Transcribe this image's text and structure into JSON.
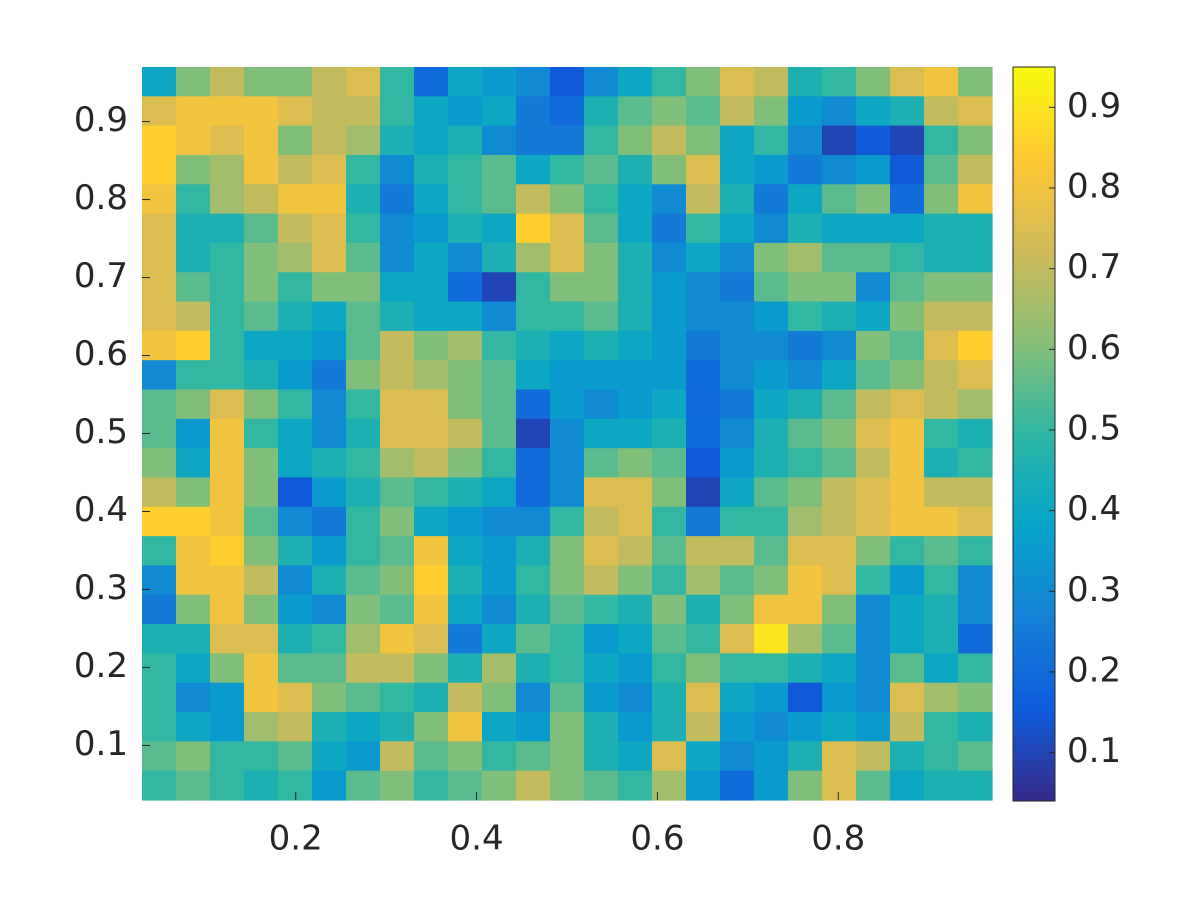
{
  "chart_data": {
    "type": "heatmap",
    "xlim": [
      0.03,
      0.97
    ],
    "ylim": [
      0.03,
      0.97
    ],
    "xticks": [
      0.2,
      0.4,
      0.6,
      0.8
    ],
    "yticks": [
      0.1,
      0.2,
      0.3,
      0.4,
      0.5,
      0.6,
      0.7,
      0.8,
      0.9
    ],
    "clim": [
      0.04,
      0.95
    ],
    "colorbar_ticks": [
      0.1,
      0.2,
      0.3,
      0.4,
      0.5,
      0.6,
      0.7,
      0.8,
      0.9
    ],
    "colormap": [
      "#352a87",
      "#0f5cdd",
      "#1481d6",
      "#06a4ca",
      "#2eb7a4",
      "#87bf77",
      "#d1bb59",
      "#fec832",
      "#f9fb0e"
    ],
    "z": [
      [
        0.4,
        0.6,
        0.7,
        0.6,
        0.6,
        0.7,
        0.75,
        0.5,
        0.2,
        0.4,
        0.35,
        0.3,
        0.15,
        0.3,
        0.4,
        0.5,
        0.6,
        0.75,
        0.7,
        0.45,
        0.5,
        0.6,
        0.75,
        0.8,
        0.6
      ],
      [
        0.75,
        0.8,
        0.8,
        0.8,
        0.75,
        0.7,
        0.7,
        0.5,
        0.4,
        0.35,
        0.4,
        0.25,
        0.2,
        0.45,
        0.55,
        0.6,
        0.55,
        0.7,
        0.6,
        0.35,
        0.3,
        0.4,
        0.45,
        0.7,
        0.75
      ],
      [
        0.85,
        0.8,
        0.75,
        0.8,
        0.6,
        0.7,
        0.65,
        0.45,
        0.4,
        0.45,
        0.3,
        0.25,
        0.25,
        0.5,
        0.6,
        0.7,
        0.6,
        0.4,
        0.5,
        0.3,
        0.1,
        0.15,
        0.1,
        0.5,
        0.6
      ],
      [
        0.85,
        0.6,
        0.65,
        0.8,
        0.7,
        0.75,
        0.5,
        0.3,
        0.45,
        0.5,
        0.55,
        0.4,
        0.5,
        0.55,
        0.45,
        0.6,
        0.75,
        0.4,
        0.35,
        0.25,
        0.3,
        0.35,
        0.15,
        0.55,
        0.7
      ],
      [
        0.8,
        0.5,
        0.65,
        0.7,
        0.8,
        0.8,
        0.45,
        0.25,
        0.4,
        0.5,
        0.55,
        0.7,
        0.6,
        0.5,
        0.4,
        0.3,
        0.7,
        0.45,
        0.25,
        0.4,
        0.55,
        0.6,
        0.2,
        0.6,
        0.8
      ],
      [
        0.75,
        0.45,
        0.45,
        0.55,
        0.7,
        0.75,
        0.5,
        0.3,
        0.35,
        0.45,
        0.4,
        0.85,
        0.75,
        0.55,
        0.4,
        0.25,
        0.5,
        0.4,
        0.3,
        0.45,
        0.4,
        0.4,
        0.4,
        0.45,
        0.45
      ],
      [
        0.75,
        0.45,
        0.5,
        0.6,
        0.65,
        0.75,
        0.55,
        0.3,
        0.4,
        0.3,
        0.45,
        0.65,
        0.75,
        0.6,
        0.45,
        0.3,
        0.4,
        0.3,
        0.6,
        0.65,
        0.55,
        0.55,
        0.5,
        0.45,
        0.45
      ],
      [
        0.75,
        0.55,
        0.5,
        0.6,
        0.5,
        0.6,
        0.6,
        0.4,
        0.4,
        0.2,
        0.1,
        0.5,
        0.6,
        0.6,
        0.45,
        0.35,
        0.3,
        0.25,
        0.55,
        0.6,
        0.6,
        0.3,
        0.55,
        0.6,
        0.6
      ],
      [
        0.75,
        0.7,
        0.5,
        0.55,
        0.45,
        0.4,
        0.55,
        0.45,
        0.4,
        0.4,
        0.3,
        0.5,
        0.5,
        0.55,
        0.45,
        0.35,
        0.3,
        0.3,
        0.35,
        0.5,
        0.45,
        0.4,
        0.6,
        0.7,
        0.7
      ],
      [
        0.8,
        0.85,
        0.5,
        0.4,
        0.4,
        0.35,
        0.55,
        0.7,
        0.6,
        0.65,
        0.5,
        0.45,
        0.4,
        0.45,
        0.4,
        0.35,
        0.25,
        0.3,
        0.3,
        0.25,
        0.3,
        0.6,
        0.55,
        0.75,
        0.85
      ],
      [
        0.3,
        0.5,
        0.5,
        0.45,
        0.35,
        0.25,
        0.6,
        0.7,
        0.65,
        0.6,
        0.55,
        0.4,
        0.35,
        0.35,
        0.35,
        0.35,
        0.2,
        0.3,
        0.35,
        0.3,
        0.4,
        0.55,
        0.6,
        0.7,
        0.75
      ],
      [
        0.55,
        0.6,
        0.75,
        0.6,
        0.5,
        0.3,
        0.5,
        0.75,
        0.75,
        0.6,
        0.55,
        0.2,
        0.35,
        0.3,
        0.35,
        0.4,
        0.2,
        0.25,
        0.4,
        0.45,
        0.55,
        0.7,
        0.75,
        0.7,
        0.65
      ],
      [
        0.55,
        0.35,
        0.8,
        0.5,
        0.4,
        0.3,
        0.45,
        0.75,
        0.75,
        0.7,
        0.55,
        0.1,
        0.3,
        0.4,
        0.4,
        0.45,
        0.2,
        0.3,
        0.45,
        0.55,
        0.6,
        0.75,
        0.8,
        0.5,
        0.45
      ],
      [
        0.6,
        0.4,
        0.8,
        0.6,
        0.4,
        0.45,
        0.5,
        0.65,
        0.7,
        0.6,
        0.5,
        0.2,
        0.3,
        0.55,
        0.6,
        0.55,
        0.15,
        0.35,
        0.45,
        0.5,
        0.55,
        0.7,
        0.8,
        0.45,
        0.5
      ],
      [
        0.7,
        0.6,
        0.8,
        0.6,
        0.15,
        0.35,
        0.45,
        0.55,
        0.5,
        0.45,
        0.4,
        0.2,
        0.3,
        0.75,
        0.75,
        0.6,
        0.1,
        0.4,
        0.55,
        0.6,
        0.7,
        0.75,
        0.8,
        0.7,
        0.7
      ],
      [
        0.85,
        0.85,
        0.8,
        0.55,
        0.3,
        0.25,
        0.5,
        0.6,
        0.4,
        0.35,
        0.3,
        0.3,
        0.5,
        0.7,
        0.75,
        0.5,
        0.25,
        0.5,
        0.5,
        0.65,
        0.7,
        0.75,
        0.8,
        0.8,
        0.75
      ],
      [
        0.5,
        0.8,
        0.85,
        0.6,
        0.45,
        0.35,
        0.5,
        0.55,
        0.8,
        0.4,
        0.35,
        0.45,
        0.6,
        0.75,
        0.7,
        0.55,
        0.7,
        0.7,
        0.55,
        0.75,
        0.75,
        0.6,
        0.5,
        0.55,
        0.5
      ],
      [
        0.3,
        0.8,
        0.8,
        0.7,
        0.3,
        0.45,
        0.55,
        0.6,
        0.85,
        0.45,
        0.35,
        0.5,
        0.6,
        0.7,
        0.6,
        0.5,
        0.65,
        0.55,
        0.6,
        0.8,
        0.75,
        0.5,
        0.35,
        0.5,
        0.3
      ],
      [
        0.25,
        0.6,
        0.8,
        0.6,
        0.35,
        0.3,
        0.6,
        0.55,
        0.8,
        0.4,
        0.3,
        0.45,
        0.55,
        0.5,
        0.45,
        0.6,
        0.45,
        0.6,
        0.8,
        0.8,
        0.6,
        0.3,
        0.4,
        0.45,
        0.3
      ],
      [
        0.45,
        0.45,
        0.75,
        0.75,
        0.45,
        0.5,
        0.65,
        0.8,
        0.75,
        0.25,
        0.4,
        0.55,
        0.5,
        0.35,
        0.4,
        0.55,
        0.5,
        0.75,
        0.9,
        0.65,
        0.55,
        0.3,
        0.4,
        0.45,
        0.2
      ],
      [
        0.5,
        0.4,
        0.6,
        0.8,
        0.55,
        0.55,
        0.7,
        0.7,
        0.6,
        0.45,
        0.65,
        0.45,
        0.5,
        0.4,
        0.35,
        0.5,
        0.6,
        0.5,
        0.5,
        0.45,
        0.4,
        0.3,
        0.55,
        0.4,
        0.5
      ],
      [
        0.5,
        0.3,
        0.35,
        0.8,
        0.75,
        0.6,
        0.55,
        0.5,
        0.45,
        0.7,
        0.6,
        0.3,
        0.55,
        0.35,
        0.3,
        0.45,
        0.75,
        0.4,
        0.35,
        0.15,
        0.35,
        0.3,
        0.75,
        0.65,
        0.6
      ],
      [
        0.5,
        0.4,
        0.35,
        0.65,
        0.7,
        0.45,
        0.4,
        0.45,
        0.6,
        0.8,
        0.4,
        0.35,
        0.6,
        0.45,
        0.35,
        0.45,
        0.7,
        0.35,
        0.3,
        0.35,
        0.4,
        0.35,
        0.7,
        0.5,
        0.45
      ],
      [
        0.55,
        0.6,
        0.5,
        0.5,
        0.55,
        0.4,
        0.35,
        0.7,
        0.55,
        0.6,
        0.5,
        0.55,
        0.6,
        0.45,
        0.4,
        0.75,
        0.4,
        0.3,
        0.35,
        0.45,
        0.75,
        0.7,
        0.45,
        0.5,
        0.55
      ],
      [
        0.5,
        0.55,
        0.5,
        0.45,
        0.5,
        0.35,
        0.55,
        0.6,
        0.5,
        0.55,
        0.6,
        0.7,
        0.6,
        0.55,
        0.5,
        0.65,
        0.35,
        0.2,
        0.35,
        0.6,
        0.75,
        0.55,
        0.4,
        0.45,
        0.45
      ]
    ]
  }
}
